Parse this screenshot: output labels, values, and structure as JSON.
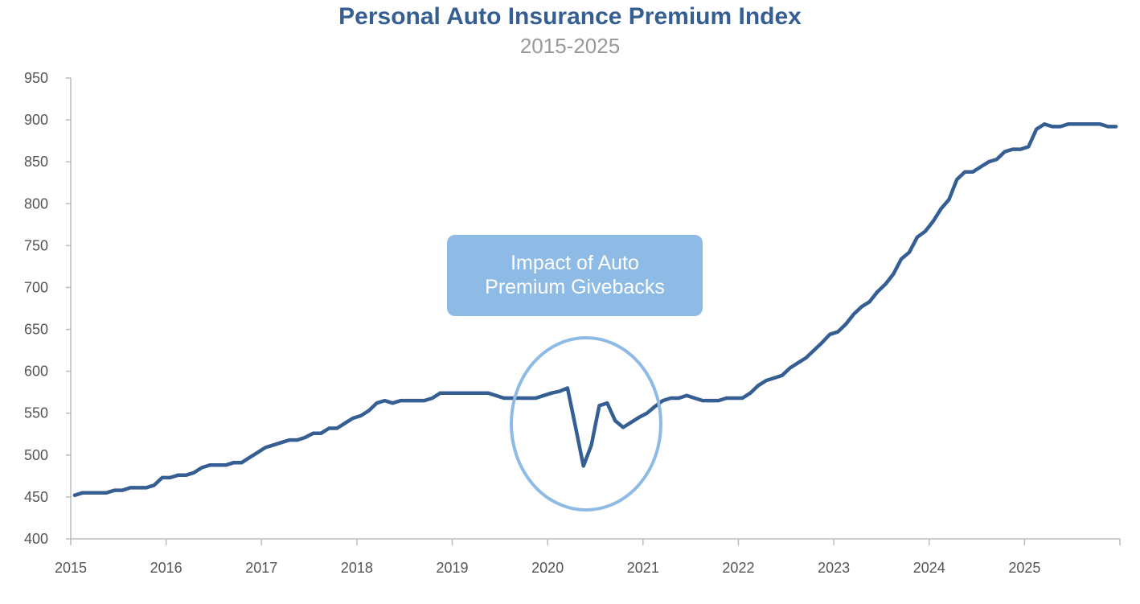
{
  "chart_data": {
    "type": "line",
    "title": "Personal Auto Insurance Premium Index",
    "subtitle": "2015-2025",
    "xlabel": "",
    "ylabel": "",
    "ylim": [
      400,
      950
    ],
    "yticks": [
      "400",
      "450",
      "500",
      "550",
      "600",
      "650",
      "700",
      "750",
      "800",
      "850",
      "900",
      "950"
    ],
    "xlim": [
      2015,
      2026
    ],
    "xticks": [
      "2015",
      "2016",
      "2017",
      "2018",
      "2019",
      "2020",
      "2021",
      "2022",
      "2023",
      "2024",
      "2025"
    ],
    "grid": false,
    "series": [
      {
        "name": "Premium Index",
        "color": "#355e93",
        "start_year": 2015,
        "frequency": "monthly",
        "values": [
          452,
          455,
          455,
          455,
          455,
          458,
          458,
          461,
          461,
          461,
          464,
          473,
          473,
          476,
          476,
          479,
          485,
          488,
          488,
          488,
          491,
          491,
          497,
          503,
          509,
          512,
          515,
          518,
          518,
          521,
          526,
          526,
          532,
          532,
          538,
          544,
          547,
          553,
          562,
          565,
          562,
          565,
          565,
          565,
          565,
          568,
          574,
          574,
          574,
          574,
          574,
          574,
          574,
          571,
          568,
          568,
          568,
          568,
          568,
          571,
          574,
          576,
          580,
          534,
          487,
          512,
          559,
          562,
          541,
          533,
          539,
          545,
          550,
          558,
          565,
          568,
          568,
          571,
          568,
          565,
          565,
          565,
          568,
          568,
          568,
          574,
          583,
          589,
          592,
          595,
          604,
          610,
          616,
          625,
          634,
          644,
          647,
          656,
          668,
          677,
          683,
          695,
          704,
          716,
          734,
          742,
          760,
          767,
          779,
          794,
          805,
          829,
          838,
          838,
          844,
          850,
          853,
          862,
          865,
          865,
          868,
          889,
          895,
          892,
          892,
          895,
          895,
          895,
          895,
          895,
          892,
          892
        ]
      }
    ],
    "annotations": [
      {
        "text_lines": [
          "Impact of Auto",
          "Premium Givebacks"
        ],
        "target_period": "2020",
        "color": "#8ebbe5"
      }
    ]
  }
}
